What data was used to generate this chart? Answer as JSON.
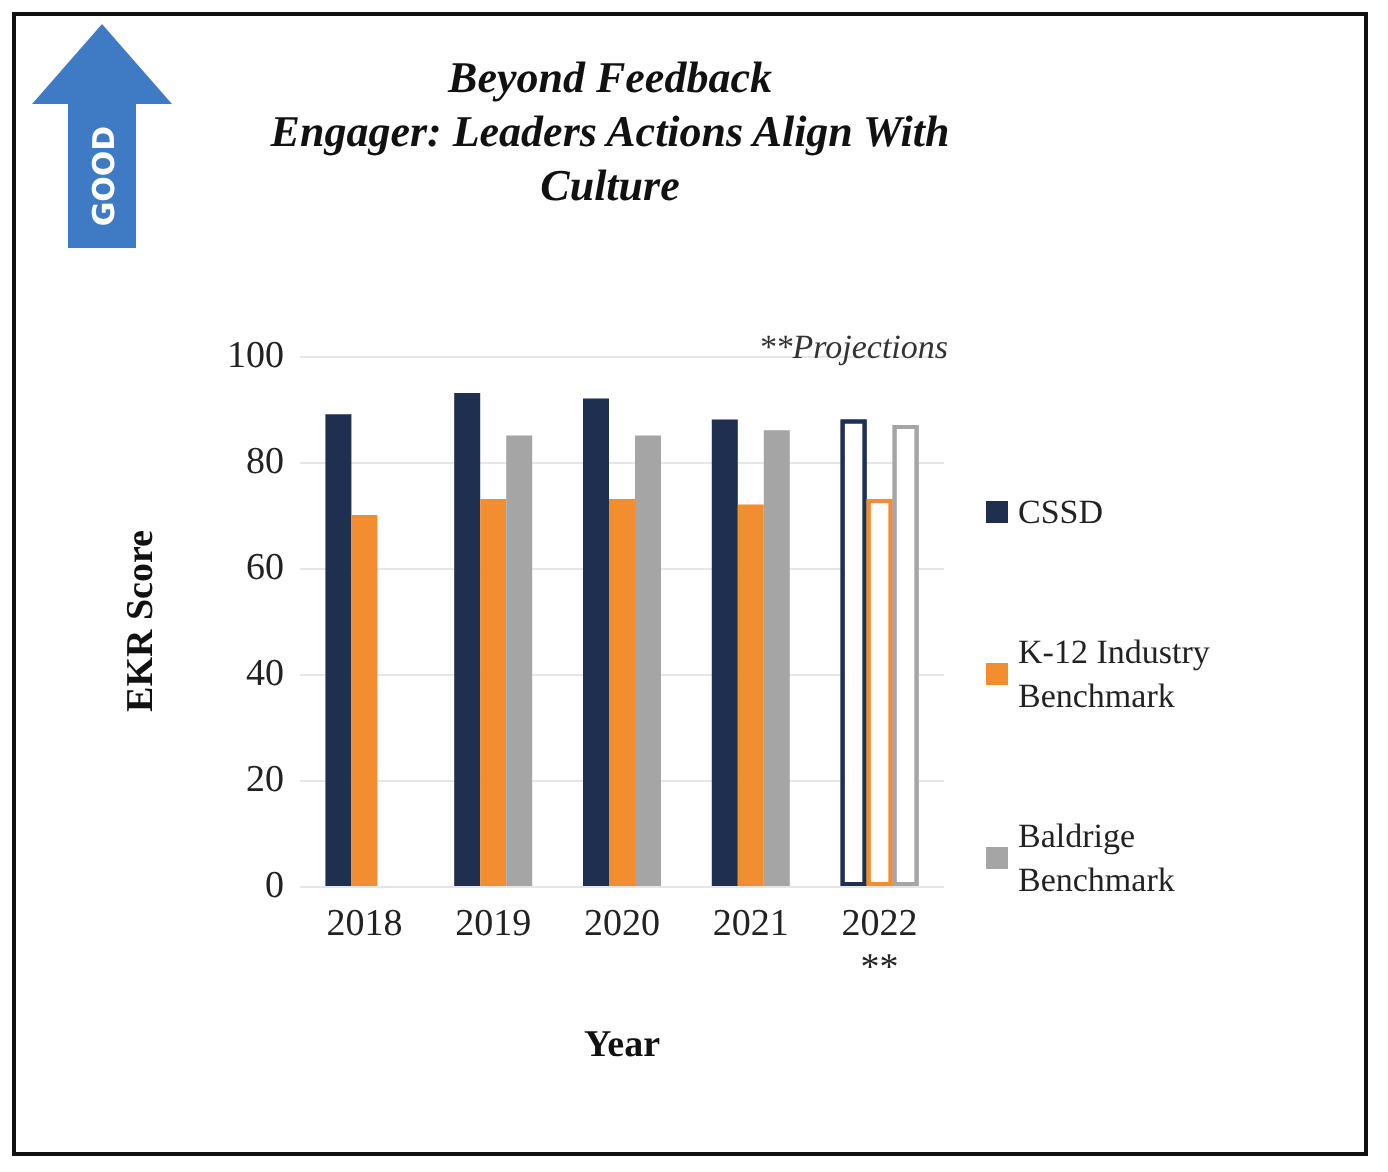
{
  "chart_data": {
    "type": "bar",
    "title": "Beyond Feedback\nEngager: Leaders Actions Align With\nCulture",
    "xlabel": "Year",
    "ylabel": "EKR Score",
    "categories": [
      "2018",
      "2019",
      "2020",
      "2021",
      "2022\n**"
    ],
    "series": [
      {
        "name": "CSSD",
        "color": "#1f2f4f",
        "values": [
          89,
          93,
          92,
          88,
          88
        ]
      },
      {
        "name": "K-12 Industry Benchmark",
        "color": "#f28e30",
        "values": [
          70,
          73,
          73,
          72,
          73
        ]
      },
      {
        "name": "Baldrige Benchmark",
        "color": "#a5a5a5",
        "values": [
          null,
          85,
          85,
          86,
          87
        ]
      }
    ],
    "ylim": [
      0,
      100
    ],
    "yticks": [
      0,
      20,
      40,
      60,
      80,
      100
    ],
    "grid": "y",
    "legend": "right",
    "annotations": [
      "**Projections",
      "GOOD"
    ]
  }
}
